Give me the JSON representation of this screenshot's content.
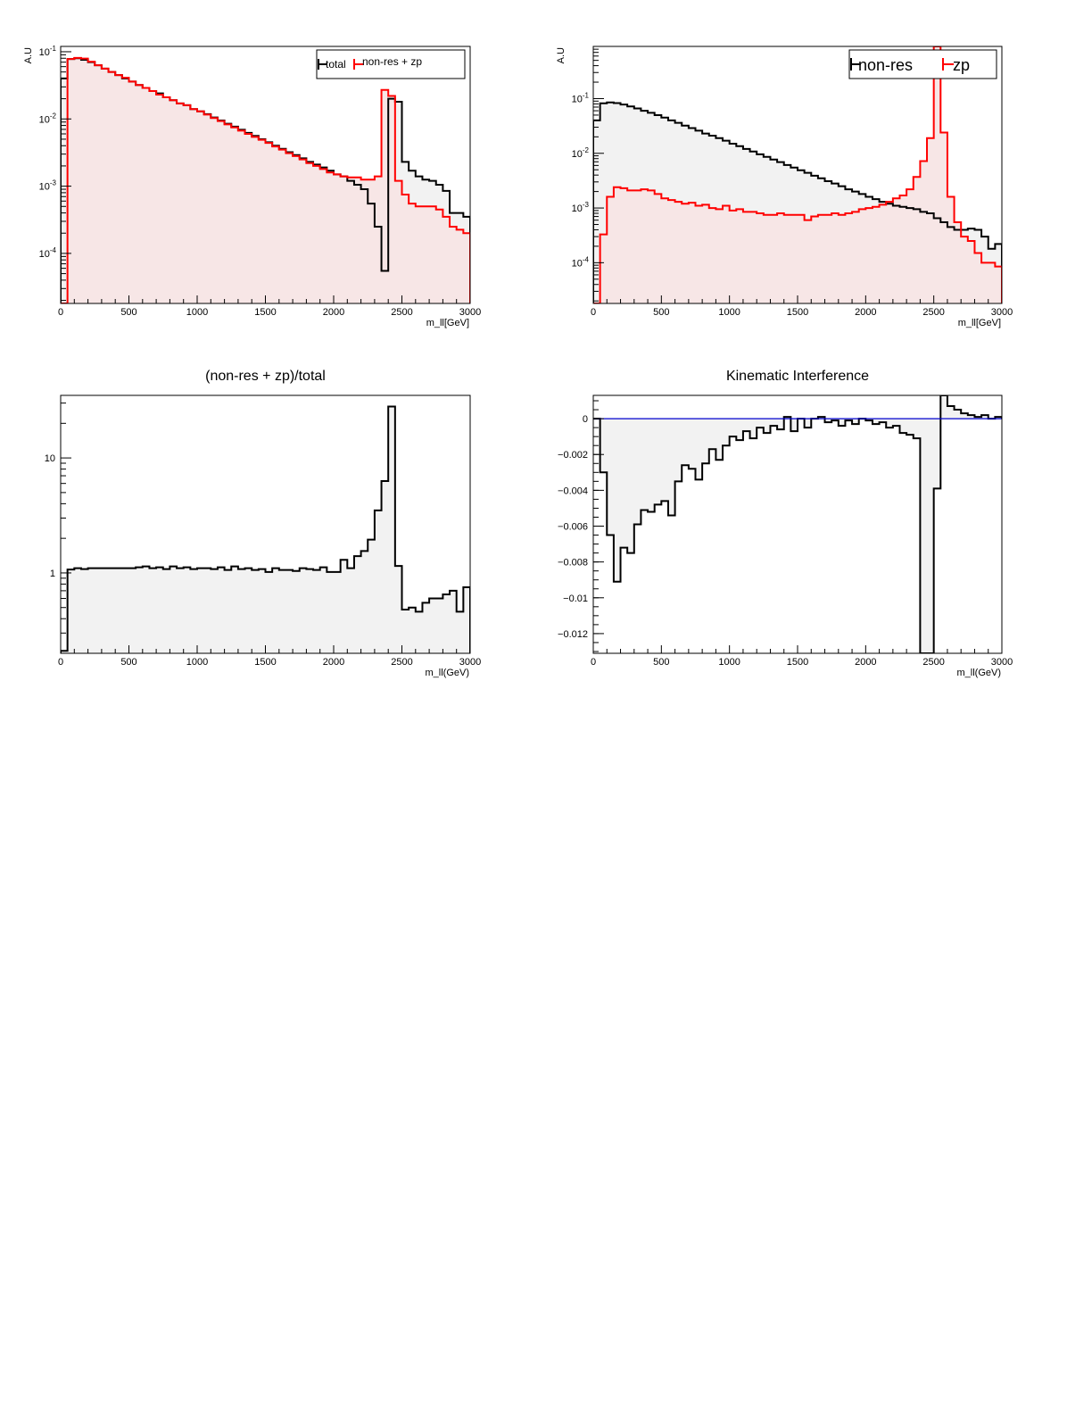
{
  "chart_data": [
    {
      "type": "line",
      "step": true,
      "title": "",
      "xlabel": "m_ll[GeV]",
      "ylabel": "A.U",
      "xlim": [
        0,
        3000
      ],
      "ylim": [
        1.8e-05,
        0.12
      ],
      "log_y": true,
      "x_ticks": [
        "0",
        "500",
        "1000",
        "1500",
        "2000",
        "2500",
        "3000"
      ],
      "y_ticks": [
        {
          "value": 0.0001,
          "base": "10",
          "exp": "-4"
        },
        {
          "value": 0.001,
          "base": "10",
          "exp": "-3"
        },
        {
          "value": 0.01,
          "base": "10",
          "exp": "-2"
        },
        {
          "value": 0.1,
          "base": "10",
          "exp": "-1"
        }
      ],
      "legend": {
        "position": "top-right",
        "entries": [
          "total",
          "non-res + zp"
        ],
        "font_size": "small"
      },
      "bin_edges": [
        0,
        50,
        100,
        150,
        200,
        250,
        300,
        350,
        400,
        450,
        500,
        550,
        600,
        650,
        700,
        750,
        800,
        850,
        900,
        950,
        1000,
        1050,
        1100,
        1150,
        1200,
        1250,
        1300,
        1350,
        1400,
        1450,
        1500,
        1550,
        1600,
        1650,
        1700,
        1750,
        1800,
        1850,
        1900,
        1950,
        2000,
        2050,
        2100,
        2150,
        2200,
        2250,
        2300,
        2350,
        2400,
        2450,
        2500,
        2550,
        2600,
        2650,
        2700,
        2750,
        2800,
        2850,
        2900,
        2950,
        3000
      ],
      "series": [
        {
          "name": "total",
          "color": "#000000",
          "fill": "#f2f2f2",
          "values": [
            0.04,
            0.078,
            0.08,
            0.076,
            0.07,
            0.063,
            0.056,
            0.05,
            0.045,
            0.04,
            0.036,
            0.032,
            0.029,
            0.026,
            0.024,
            0.021,
            0.019,
            0.017,
            0.016,
            0.014,
            0.013,
            0.0118,
            0.0105,
            0.0095,
            0.0085,
            0.0077,
            0.0069,
            0.0062,
            0.0056,
            0.005,
            0.0045,
            0.004,
            0.0036,
            0.0032,
            0.0029,
            0.0026,
            0.0023,
            0.0021,
            0.0019,
            0.0017,
            0.0015,
            0.0014,
            0.0012,
            0.00105,
            0.0009,
            0.00055,
            0.00025,
            5.5e-05,
            0.02,
            0.018,
            0.0023,
            0.0017,
            0.0014,
            0.00125,
            0.0012,
            0.00105,
            0.00085,
            0.0004,
            0.0004,
            0.00035
          ]
        },
        {
          "name": "non-res + zp",
          "color": "#ff0000",
          "fill": "#f7e6e6",
          "values": [
            1.8e-05,
            0.078,
            0.081,
            0.079,
            0.071,
            0.063,
            0.056,
            0.05,
            0.045,
            0.041,
            0.036,
            0.032,
            0.029,
            0.026,
            0.023,
            0.021,
            0.019,
            0.017,
            0.016,
            0.014,
            0.013,
            0.0116,
            0.0103,
            0.0093,
            0.0083,
            0.0075,
            0.0067,
            0.006,
            0.0054,
            0.0049,
            0.0044,
            0.0039,
            0.0035,
            0.0031,
            0.0028,
            0.0025,
            0.0022,
            0.002,
            0.0018,
            0.0016,
            0.0015,
            0.0014,
            0.00135,
            0.00135,
            0.00125,
            0.00125,
            0.0014,
            0.027,
            0.022,
            0.0012,
            0.00075,
            0.00055,
            0.0005,
            0.0005,
            0.0005,
            0.00045,
            0.00035,
            0.00025,
            0.000225,
            0.0002
          ]
        }
      ]
    },
    {
      "type": "line",
      "step": true,
      "title": "",
      "xlabel": "m_ll[GeV]",
      "ylabel": "A.U",
      "xlim": [
        0,
        3000
      ],
      "ylim": [
        1.8e-05,
        0.9
      ],
      "log_y": true,
      "x_ticks": [
        "0",
        "500",
        "1000",
        "1500",
        "2000",
        "2500",
        "3000"
      ],
      "y_ticks": [
        {
          "value": 0.0001,
          "base": "10",
          "exp": "-4"
        },
        {
          "value": 0.001,
          "base": "10",
          "exp": "-3"
        },
        {
          "value": 0.01,
          "base": "10",
          "exp": "-2"
        },
        {
          "value": 0.1,
          "base": "10",
          "exp": "-1"
        }
      ],
      "legend": {
        "position": "top-right",
        "entries": [
          "non-res",
          "zp"
        ],
        "font_size": "large"
      },
      "bin_edges": [
        0,
        50,
        100,
        150,
        200,
        250,
        300,
        350,
        400,
        450,
        500,
        550,
        600,
        650,
        700,
        750,
        800,
        850,
        900,
        950,
        1000,
        1050,
        1100,
        1150,
        1200,
        1250,
        1300,
        1350,
        1400,
        1450,
        1500,
        1550,
        1600,
        1650,
        1700,
        1750,
        1800,
        1850,
        1900,
        1950,
        2000,
        2050,
        2100,
        2150,
        2200,
        2250,
        2300,
        2350,
        2400,
        2450,
        2500,
        2550,
        2600,
        2650,
        2700,
        2750,
        2800,
        2850,
        2900,
        2950,
        3000
      ],
      "series": [
        {
          "name": "non-res",
          "color": "#000000",
          "fill": "#f2f2f2",
          "values": [
            0.04,
            0.082,
            0.085,
            0.083,
            0.078,
            0.072,
            0.066,
            0.06,
            0.055,
            0.05,
            0.045,
            0.04,
            0.036,
            0.032,
            0.029,
            0.026,
            0.023,
            0.021,
            0.019,
            0.017,
            0.015,
            0.0135,
            0.012,
            0.0108,
            0.0096,
            0.0086,
            0.0077,
            0.0069,
            0.0061,
            0.0055,
            0.0049,
            0.0044,
            0.0039,
            0.0035,
            0.0031,
            0.0028,
            0.0025,
            0.0022,
            0.002,
            0.0018,
            0.0016,
            0.00145,
            0.0013,
            0.0012,
            0.0011,
            0.00105,
            0.001,
            0.00095,
            0.00085,
            0.0008,
            0.00065,
            0.00055,
            0.00045,
            0.0004,
            0.0004,
            0.00042,
            0.0004,
            0.0003,
            0.00018,
            0.00022
          ]
        },
        {
          "name": "zp",
          "color": "#ff0000",
          "fill": "#f7e6e6",
          "values": [
            1.8e-05,
            0.00033,
            0.0016,
            0.0024,
            0.0023,
            0.0021,
            0.0021,
            0.0022,
            0.0021,
            0.0018,
            0.0015,
            0.0014,
            0.0013,
            0.0012,
            0.00125,
            0.0011,
            0.00115,
            0.001,
            0.00095,
            0.0011,
            0.0009,
            0.00095,
            0.00085,
            0.00085,
            0.0008,
            0.00075,
            0.00075,
            0.0008,
            0.00075,
            0.00075,
            0.00075,
            0.0006,
            0.0007,
            0.00075,
            0.00075,
            0.0008,
            0.00075,
            0.0008,
            0.00085,
            0.00095,
            0.001,
            0.00105,
            0.00115,
            0.0013,
            0.0015,
            0.0017,
            0.0022,
            0.0037,
            0.0072,
            0.019,
            0.9,
            0.024,
            0.0016,
            0.00055,
            0.0003,
            0.00025,
            0.00015,
            0.0001,
            0.0001,
            8.5e-05
          ]
        }
      ]
    },
    {
      "type": "line",
      "step": true,
      "title": "(non-res + zp)/total",
      "xlabel": "m_ll(GeV)",
      "ylabel": "",
      "xlim": [
        0,
        3000
      ],
      "ylim": [
        0.2,
        35
      ],
      "log_y": true,
      "x_ticks": [
        "0",
        "500",
        "1000",
        "1500",
        "2000",
        "2500",
        "3000"
      ],
      "y_ticks": [
        {
          "value": 1,
          "label": "1"
        },
        {
          "value": 10,
          "label": "10"
        }
      ],
      "bin_edges": [
        0,
        50,
        100,
        150,
        200,
        250,
        300,
        350,
        400,
        450,
        500,
        550,
        600,
        650,
        700,
        750,
        800,
        850,
        900,
        950,
        1000,
        1050,
        1100,
        1150,
        1200,
        1250,
        1300,
        1350,
        1400,
        1450,
        1500,
        1550,
        1600,
        1650,
        1700,
        1750,
        1800,
        1850,
        1900,
        1950,
        2000,
        2050,
        2100,
        2150,
        2200,
        2250,
        2300,
        2350,
        2400,
        2450,
        2500,
        2550,
        2600,
        2650,
        2700,
        2750,
        2800,
        2850,
        2900,
        2950,
        3000
      ],
      "series": [
        {
          "color": "#000000",
          "fill": "#f2f2f2",
          "values": [
            0.21,
            1.07,
            1.1,
            1.08,
            1.1,
            1.1,
            1.1,
            1.1,
            1.1,
            1.1,
            1.1,
            1.12,
            1.14,
            1.1,
            1.12,
            1.08,
            1.14,
            1.1,
            1.12,
            1.08,
            1.1,
            1.1,
            1.08,
            1.12,
            1.06,
            1.14,
            1.08,
            1.1,
            1.06,
            1.08,
            1.02,
            1.1,
            1.06,
            1.06,
            1.04,
            1.1,
            1.08,
            1.06,
            1.12,
            1.02,
            1.02,
            1.3,
            1.1,
            1.4,
            1.55,
            1.95,
            3.5,
            6.3,
            28,
            1.15,
            0.48,
            0.5,
            0.46,
            0.55,
            0.6,
            0.6,
            0.65,
            0.7,
            0.46,
            0.75
          ]
        }
      ]
    },
    {
      "type": "line",
      "step": true,
      "title": "Kinematic Interference",
      "xlabel": "m_ll(GeV)",
      "ylabel": "",
      "xlim": [
        0,
        3000
      ],
      "ylim": [
        -0.0131,
        0.0013
      ],
      "log_y": false,
      "x_ticks": [
        "0",
        "500",
        "1000",
        "1500",
        "2000",
        "2500",
        "3000"
      ],
      "y_ticks": [
        {
          "value": 0,
          "label": "0"
        },
        {
          "value": -0.002,
          "label": "−0.002"
        },
        {
          "value": -0.004,
          "label": "−0.004"
        },
        {
          "value": -0.006,
          "label": "−0.006"
        },
        {
          "value": -0.008,
          "label": "−0.008"
        },
        {
          "value": -0.01,
          "label": "−0.01"
        },
        {
          "value": -0.012,
          "label": "−0.012"
        }
      ],
      "reference_line": {
        "y": 0,
        "color": "#0000cc"
      },
      "bin_edges": [
        0,
        50,
        100,
        150,
        200,
        250,
        300,
        350,
        400,
        450,
        500,
        550,
        600,
        650,
        700,
        750,
        800,
        850,
        900,
        950,
        1000,
        1050,
        1100,
        1150,
        1200,
        1250,
        1300,
        1350,
        1400,
        1450,
        1500,
        1550,
        1600,
        1650,
        1700,
        1750,
        1800,
        1850,
        1900,
        1950,
        2000,
        2050,
        2100,
        2150,
        2200,
        2250,
        2300,
        2350,
        2400,
        2450,
        2500,
        2550,
        2600,
        2650,
        2700,
        2750,
        2800,
        2850,
        2900,
        2950,
        3000
      ],
      "series": [
        {
          "color": "#000000",
          "fill": "#f2f2f2",
          "values": [
            0,
            -0.003,
            -0.0065,
            -0.0091,
            -0.0072,
            -0.0075,
            -0.0059,
            -0.0051,
            -0.0052,
            -0.0048,
            -0.0046,
            -0.0054,
            -0.0035,
            -0.0026,
            -0.0028,
            -0.0034,
            -0.0025,
            -0.0017,
            -0.0023,
            -0.0015,
            -0.001,
            -0.0012,
            -0.0007,
            -0.0011,
            -0.0005,
            -0.0008,
            -0.0004,
            -0.0006,
            0.0001,
            -0.0007,
            0,
            -0.0005,
            0,
            0.0001,
            -0.0002,
            -0.0001,
            -0.0004,
            -0.0001,
            -0.0003,
            0,
            -0.0001,
            -0.0003,
            -0.0002,
            -0.0005,
            -0.0004,
            -0.0008,
            -0.0009,
            -0.0011,
            -0.0131,
            -0.0131,
            -0.0039,
            0.0013,
            0.0007,
            0.0005,
            0.0003,
            0.0002,
            0.0001,
            0.0002,
            0,
            0.0001
          ]
        }
      ]
    }
  ]
}
